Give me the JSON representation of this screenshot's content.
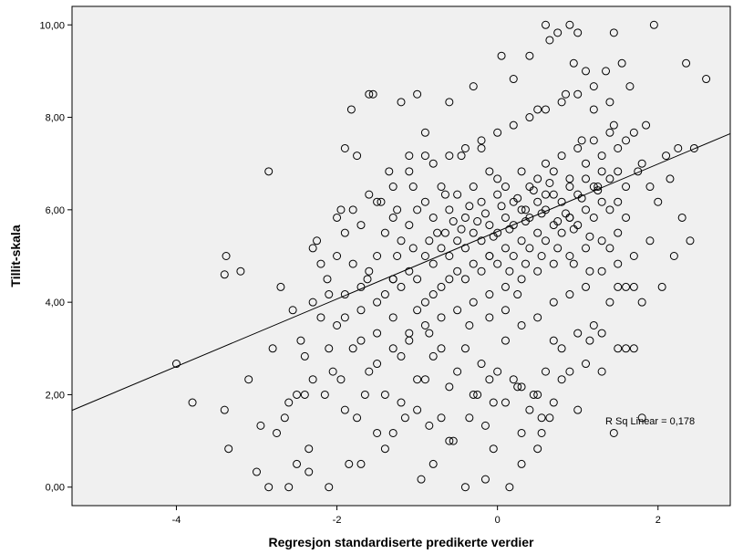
{
  "chart_data": {
    "type": "scatter",
    "xlabel": "Regresjon standardiserte predikerte verdier",
    "ylabel": "Tillit-skala",
    "xlim": [
      -5.3,
      2.9
    ],
    "ylim": [
      -0.4,
      10.4
    ],
    "x_ticks": [
      -4,
      -2,
      0,
      2
    ],
    "x_tick_labels": [
      "-4",
      "-2",
      "0",
      "2"
    ],
    "y_ticks": [
      0,
      2,
      4,
      6,
      8,
      10
    ],
    "y_tick_labels": [
      "0,00",
      "2,00",
      "4,00",
      "6,00",
      "8,00",
      "10,00"
    ],
    "grid": false,
    "plot_background": "#f0f0f0",
    "point_color": "#000000",
    "fit_line": {
      "type": "linear",
      "intercept": 5.53,
      "slope": 0.73
    },
    "annotation": "R Sq Linear = 0,178",
    "points": [
      [
        -4.0,
        2.67
      ],
      [
        -3.8,
        1.83
      ],
      [
        -3.4,
        1.67
      ],
      [
        -3.35,
        0.83
      ],
      [
        -3.4,
        4.6
      ],
      [
        -3.38,
        5.0
      ],
      [
        -3.2,
        4.67
      ],
      [
        -3.1,
        2.33
      ],
      [
        -3.0,
        0.33
      ],
      [
        -2.95,
        1.33
      ],
      [
        -2.85,
        6.83
      ],
      [
        -2.85,
        0.0
      ],
      [
        -2.75,
        1.17
      ],
      [
        -2.7,
        4.33
      ],
      [
        -2.6,
        0.0
      ],
      [
        -2.55,
        3.83
      ],
      [
        -2.5,
        0.5
      ],
      [
        -2.45,
        3.17
      ],
      [
        -2.4,
        2.0
      ],
      [
        -2.35,
        0.83
      ],
      [
        -2.35,
        0.33
      ],
      [
        -2.3,
        5.17
      ],
      [
        -2.25,
        5.33
      ],
      [
        -2.2,
        3.67
      ],
      [
        -2.15,
        2.0
      ],
      [
        -2.12,
        4.5
      ],
      [
        -2.1,
        0.0
      ],
      [
        -2.05,
        2.5
      ],
      [
        -2.0,
        5.0
      ],
      [
        -1.95,
        6.0
      ],
      [
        -1.9,
        1.67
      ],
      [
        -1.9,
        7.33
      ],
      [
        -1.85,
        0.5
      ],
      [
        -1.82,
        8.17
      ],
      [
        -1.75,
        7.17
      ],
      [
        -1.7,
        0.5
      ],
      [
        -1.65,
        2.0
      ],
      [
        -1.62,
        4.5
      ],
      [
        -1.55,
        8.5
      ],
      [
        -1.5,
        1.17
      ],
      [
        -1.45,
        6.17
      ],
      [
        -1.4,
        0.83
      ],
      [
        -1.35,
        6.83
      ],
      [
        -1.3,
        4.5
      ],
      [
        -1.25,
        6.0
      ],
      [
        -1.2,
        8.33
      ],
      [
        -1.15,
        1.5
      ],
      [
        -1.1,
        7.17
      ],
      [
        -1.05,
        6.5
      ],
      [
        -0.95,
        0.17
      ],
      [
        -0.9,
        7.67
      ],
      [
        -0.85,
        3.33
      ],
      [
        -0.8,
        0.5
      ],
      [
        -0.75,
        5.5
      ],
      [
        -0.7,
        1.5
      ],
      [
        -0.65,
        6.33
      ],
      [
        -0.55,
        1.0
      ],
      [
        -0.45,
        7.17
      ],
      [
        -0.4,
        0.0
      ],
      [
        -0.35,
        3.5
      ],
      [
        -0.3,
        8.67
      ],
      [
        -0.25,
        2.0
      ],
      [
        -0.2,
        7.33
      ],
      [
        -0.15,
        1.33
      ],
      [
        -0.1,
        5.0
      ],
      [
        -0.05,
        0.83
      ],
      [
        0.0,
        6.67
      ],
      [
        0.05,
        9.33
      ],
      [
        0.1,
        3.17
      ],
      [
        0.15,
        0.0
      ],
      [
        0.2,
        8.83
      ],
      [
        0.25,
        4.17
      ],
      [
        0.3,
        0.5
      ],
      [
        0.35,
        6.0
      ],
      [
        0.4,
        9.33
      ],
      [
        0.45,
        2.0
      ],
      [
        0.5,
        8.17
      ],
      [
        0.55,
        1.17
      ],
      [
        0.6,
        6.33
      ],
      [
        0.65,
        9.67
      ],
      [
        0.7,
        3.17
      ],
      [
        0.75,
        9.83
      ],
      [
        0.8,
        2.33
      ],
      [
        0.85,
        8.5
      ],
      [
        0.9,
        5.83
      ],
      [
        0.95,
        9.17
      ],
      [
        1.0,
        1.67
      ],
      [
        1.05,
        7.5
      ],
      [
        1.1,
        9.0
      ],
      [
        1.15,
        3.17
      ],
      [
        1.2,
        8.67
      ],
      [
        1.25,
        6.5
      ],
      [
        1.3,
        2.5
      ],
      [
        1.35,
        9.0
      ],
      [
        1.4,
        5.17
      ],
      [
        1.45,
        7.83
      ],
      [
        1.5,
        3.0
      ],
      [
        1.55,
        9.17
      ],
      [
        1.6,
        4.33
      ],
      [
        1.65,
        8.67
      ],
      [
        1.7,
        3.0
      ],
      [
        1.75,
        6.83
      ],
      [
        1.8,
        1.5
      ],
      [
        1.85,
        7.83
      ],
      [
        1.9,
        5.33
      ],
      [
        1.95,
        10.0
      ],
      [
        2.0,
        6.17
      ],
      [
        2.05,
        4.33
      ],
      [
        2.1,
        7.17
      ],
      [
        2.15,
        6.67
      ],
      [
        2.2,
        5.0
      ],
      [
        2.25,
        7.33
      ],
      [
        2.3,
        5.83
      ],
      [
        2.35,
        9.17
      ],
      [
        2.4,
        5.33
      ],
      [
        2.45,
        7.33
      ],
      [
        2.6,
        8.83
      ],
      [
        0.6,
        10.0
      ],
      [
        0.9,
        10.0
      ],
      [
        1.0,
        9.83
      ],
      [
        1.45,
        9.83
      ],
      [
        -1.6,
        8.5
      ],
      [
        -1.0,
        8.5
      ],
      [
        -0.6,
        8.33
      ],
      [
        -2.2,
        4.83
      ],
      [
        -2.0,
        3.5
      ],
      [
        -1.8,
        3.0
      ],
      [
        -1.7,
        3.83
      ],
      [
        -1.6,
        2.5
      ],
      [
        -1.4,
        2.0
      ],
      [
        -1.3,
        3.67
      ],
      [
        -1.2,
        2.83
      ],
      [
        -1.1,
        3.33
      ],
      [
        -1.0,
        2.33
      ],
      [
        -0.9,
        2.33
      ],
      [
        -0.8,
        2.83
      ],
      [
        -0.7,
        3.0
      ],
      [
        -0.6,
        2.17
      ],
      [
        -0.5,
        2.5
      ],
      [
        -0.4,
        3.0
      ],
      [
        -0.3,
        2.0
      ],
      [
        -0.2,
        2.67
      ],
      [
        -0.1,
        2.33
      ],
      [
        0.0,
        2.5
      ],
      [
        0.1,
        1.83
      ],
      [
        0.2,
        2.33
      ],
      [
        0.3,
        2.17
      ],
      [
        0.4,
        1.67
      ],
      [
        0.5,
        2.0
      ],
      [
        0.6,
        2.5
      ],
      [
        0.7,
        1.83
      ],
      [
        0.8,
        3.0
      ],
      [
        0.9,
        2.5
      ],
      [
        1.0,
        3.33
      ],
      [
        1.1,
        2.67
      ],
      [
        1.2,
        3.5
      ],
      [
        1.3,
        3.33
      ],
      [
        1.4,
        4.0
      ],
      [
        1.5,
        4.33
      ],
      [
        1.6,
        3.0
      ],
      [
        1.7,
        4.33
      ],
      [
        1.8,
        4.0
      ],
      [
        -1.2,
        1.83
      ],
      [
        -0.6,
        1.0
      ],
      [
        0.5,
        0.83
      ],
      [
        0.55,
        1.5
      ],
      [
        0.3,
        1.17
      ],
      [
        -0.15,
        0.17
      ],
      [
        -0.05,
        1.83
      ],
      [
        1.45,
        1.17
      ],
      [
        -2.6,
        1.83
      ],
      [
        -2.5,
        2.0
      ],
      [
        -2.65,
        1.5
      ],
      [
        -2.3,
        2.33
      ],
      [
        -1.95,
        2.33
      ],
      [
        -1.75,
        1.5
      ],
      [
        -1.5,
        2.67
      ],
      [
        -1.3,
        1.17
      ],
      [
        -1.0,
        1.67
      ],
      [
        -0.85,
        1.33
      ],
      [
        -0.35,
        1.5
      ],
      [
        0.25,
        2.17
      ],
      [
        0.65,
        1.5
      ],
      [
        -2.8,
        3.0
      ],
      [
        -2.4,
        2.83
      ],
      [
        -2.1,
        3.0
      ],
      [
        -1.9,
        4.17
      ],
      [
        -1.8,
        4.83
      ],
      [
        -1.7,
        4.33
      ],
      [
        -1.6,
        4.67
      ],
      [
        -1.5,
        5.0
      ],
      [
        -1.4,
        5.5
      ],
      [
        -1.3,
        5.83
      ],
      [
        -1.2,
        5.33
      ],
      [
        -1.1,
        5.67
      ],
      [
        -1.0,
        6.0
      ],
      [
        -0.9,
        6.17
      ],
      [
        -0.8,
        5.83
      ],
      [
        -0.7,
        6.5
      ],
      [
        -0.6,
        6.0
      ],
      [
        -0.5,
        6.33
      ],
      [
        -0.4,
        5.83
      ],
      [
        -0.3,
        6.5
      ],
      [
        -0.2,
        6.17
      ],
      [
        -0.1,
        6.83
      ],
      [
        0.0,
        6.33
      ],
      [
        0.1,
        6.5
      ],
      [
        0.2,
        6.17
      ],
      [
        0.3,
        6.83
      ],
      [
        0.4,
        6.5
      ],
      [
        0.5,
        6.67
      ],
      [
        0.6,
        7.0
      ],
      [
        0.7,
        6.83
      ],
      [
        0.8,
        7.17
      ],
      [
        0.9,
        6.67
      ],
      [
        1.0,
        7.33
      ],
      [
        1.1,
        7.0
      ],
      [
        1.2,
        7.5
      ],
      [
        1.3,
        7.17
      ],
      [
        1.4,
        7.67
      ],
      [
        1.5,
        7.33
      ],
      [
        1.6,
        7.5
      ],
      [
        1.7,
        7.67
      ],
      [
        1.8,
        7.0
      ],
      [
        1.9,
        6.5
      ],
      [
        -1.5,
        4.0
      ],
      [
        -1.4,
        4.17
      ],
      [
        -1.3,
        4.5
      ],
      [
        -1.2,
        4.33
      ],
      [
        -1.1,
        4.67
      ],
      [
        -1.0,
        4.5
      ],
      [
        -0.9,
        5.0
      ],
      [
        -0.8,
        4.83
      ],
      [
        -0.7,
        5.17
      ],
      [
        -0.6,
        5.0
      ],
      [
        -0.5,
        5.33
      ],
      [
        -0.4,
        5.17
      ],
      [
        -0.3,
        5.5
      ],
      [
        -0.2,
        5.33
      ],
      [
        -0.1,
        5.67
      ],
      [
        0.0,
        5.5
      ],
      [
        0.1,
        5.83
      ],
      [
        0.2,
        5.67
      ],
      [
        0.3,
        6.0
      ],
      [
        0.4,
        5.83
      ],
      [
        0.5,
        6.17
      ],
      [
        0.6,
        6.0
      ],
      [
        0.7,
        6.33
      ],
      [
        0.8,
        6.17
      ],
      [
        0.9,
        6.5
      ],
      [
        1.0,
        6.33
      ],
      [
        1.1,
        6.67
      ],
      [
        1.2,
        6.5
      ],
      [
        1.3,
        6.83
      ],
      [
        1.4,
        6.67
      ],
      [
        1.5,
        6.83
      ],
      [
        1.6,
        6.5
      ],
      [
        -1.0,
        3.83
      ],
      [
        -0.9,
        4.0
      ],
      [
        -0.8,
        4.17
      ],
      [
        -0.7,
        4.33
      ],
      [
        -0.6,
        4.5
      ],
      [
        -0.5,
        4.67
      ],
      [
        -0.4,
        4.5
      ],
      [
        -0.3,
        4.83
      ],
      [
        -0.2,
        4.67
      ],
      [
        -0.1,
        5.0
      ],
      [
        0.0,
        4.83
      ],
      [
        0.1,
        5.17
      ],
      [
        0.2,
        5.0
      ],
      [
        0.3,
        5.33
      ],
      [
        0.4,
        5.17
      ],
      [
        0.5,
        5.5
      ],
      [
        0.6,
        5.33
      ],
      [
        0.7,
        5.67
      ],
      [
        0.8,
        5.5
      ],
      [
        0.9,
        5.83
      ],
      [
        1.0,
        5.67
      ],
      [
        1.1,
        6.0
      ],
      [
        1.2,
        5.83
      ],
      [
        1.3,
        6.17
      ],
      [
        1.4,
        6.0
      ],
      [
        1.5,
        6.17
      ],
      [
        1.6,
        5.83
      ],
      [
        -0.9,
        3.5
      ],
      [
        -0.7,
        3.67
      ],
      [
        -0.5,
        3.83
      ],
      [
        -0.3,
        4.0
      ],
      [
        -0.1,
        4.17
      ],
      [
        0.1,
        4.33
      ],
      [
        0.3,
        4.5
      ],
      [
        0.5,
        4.67
      ],
      [
        0.7,
        4.83
      ],
      [
        0.9,
        5.0
      ],
      [
        1.1,
        5.17
      ],
      [
        1.3,
        5.33
      ],
      [
        1.5,
        5.5
      ],
      [
        -0.8,
        7.0
      ],
      [
        -0.6,
        7.17
      ],
      [
        -0.4,
        7.33
      ],
      [
        -0.2,
        7.5
      ],
      [
        0.0,
        7.67
      ],
      [
        0.2,
        7.83
      ],
      [
        0.4,
        8.0
      ],
      [
        0.6,
        8.17
      ],
      [
        0.8,
        8.33
      ],
      [
        1.0,
        8.5
      ],
      [
        1.2,
        8.17
      ],
      [
        1.4,
        8.33
      ],
      [
        -1.6,
        6.33
      ],
      [
        -1.8,
        6.0
      ],
      [
        -2.0,
        5.83
      ],
      [
        -1.9,
        5.5
      ],
      [
        -1.7,
        5.67
      ],
      [
        -1.5,
        6.17
      ],
      [
        -1.3,
        6.5
      ],
      [
        -1.1,
        6.83
      ],
      [
        -0.9,
        7.17
      ],
      [
        -2.3,
        4.0
      ],
      [
        -2.1,
        4.17
      ],
      [
        -1.9,
        3.67
      ],
      [
        -1.7,
        3.17
      ],
      [
        -1.5,
        3.33
      ],
      [
        -1.3,
        3.0
      ],
      [
        -1.1,
        3.17
      ],
      [
        -0.1,
        3.67
      ],
      [
        0.1,
        3.83
      ],
      [
        0.3,
        3.5
      ],
      [
        0.5,
        3.67
      ],
      [
        0.7,
        4.0
      ],
      [
        0.9,
        4.17
      ],
      [
        1.1,
        4.33
      ],
      [
        1.3,
        4.67
      ],
      [
        1.5,
        4.83
      ],
      [
        1.7,
        5.0
      ],
      [
        -0.55,
        5.75
      ],
      [
        -0.35,
        6.08
      ],
      [
        -0.15,
        5.92
      ],
      [
        0.05,
        6.08
      ],
      [
        0.25,
        6.25
      ],
      [
        0.45,
        6.42
      ],
      [
        0.65,
        6.58
      ],
      [
        0.85,
        5.92
      ],
      [
        1.05,
        6.25
      ],
      [
        1.25,
        6.42
      ],
      [
        -0.45,
        5.58
      ],
      [
        -0.25,
        5.75
      ],
      [
        -0.05,
        5.42
      ],
      [
        0.15,
        5.58
      ],
      [
        0.35,
        5.75
      ],
      [
        0.55,
        5.92
      ],
      [
        0.75,
        5.75
      ],
      [
        0.95,
        5.58
      ],
      [
        1.15,
        5.42
      ],
      [
        -1.25,
        5.0
      ],
      [
        -1.05,
        5.17
      ],
      [
        -0.85,
        5.33
      ],
      [
        -0.65,
        5.5
      ],
      [
        0.15,
        4.67
      ],
      [
        0.35,
        4.83
      ],
      [
        0.55,
        5.0
      ],
      [
        0.75,
        5.17
      ],
      [
        0.95,
        4.83
      ],
      [
        1.15,
        4.67
      ]
    ]
  }
}
